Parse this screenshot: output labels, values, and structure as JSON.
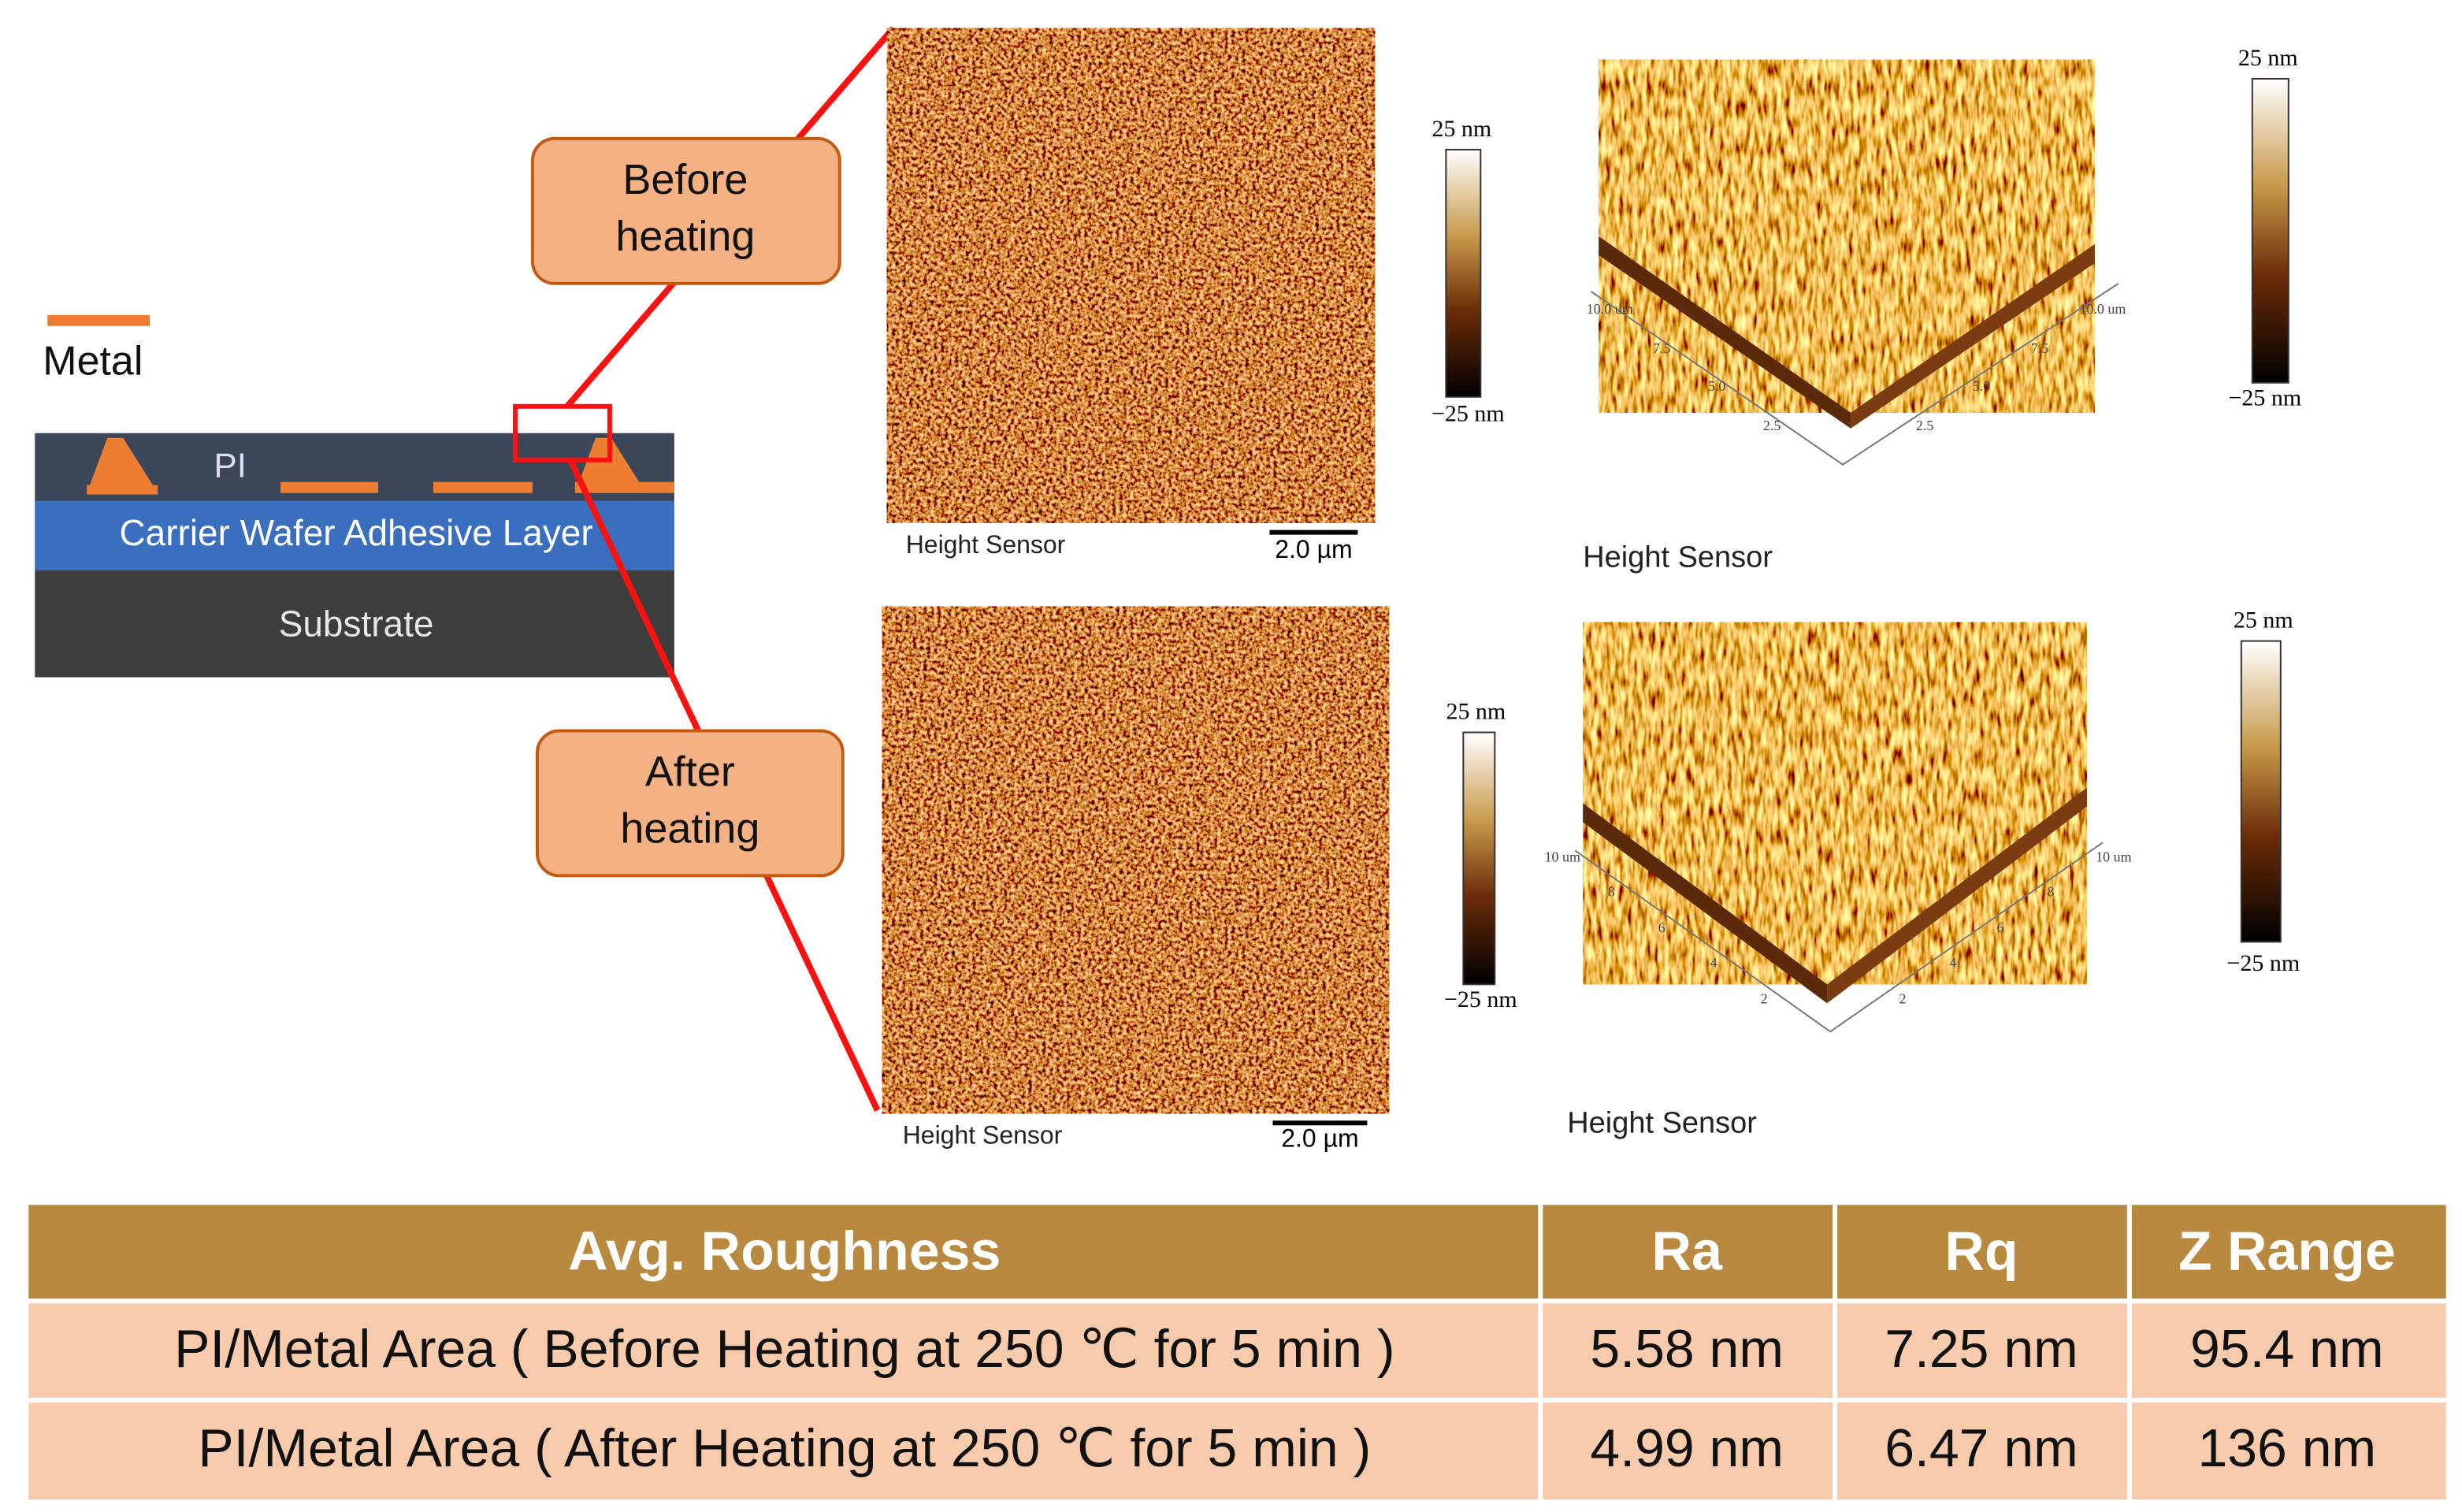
{
  "legend": {
    "metal": "Metal"
  },
  "cross_section": {
    "pi": "PI",
    "adhesive": "Carrier Wafer Adhesive Layer",
    "substrate": "Substrate"
  },
  "callouts": {
    "before": [
      "Before",
      "heating"
    ],
    "after": [
      "After",
      "heating"
    ]
  },
  "afm": [
    {
      "image_label": "Height Sensor",
      "scale_bar": "2.0 µm",
      "colorbar_2d": [
        "25 nm",
        "−25 nm"
      ],
      "surface_label": "Height Sensor",
      "surface_ticks_left": [
        "10.0 um",
        "7.5",
        "5.0",
        "2.5"
      ],
      "surface_ticks_right": [
        "10.0 um",
        "7.5",
        "5.0",
        "2.5"
      ],
      "colorbar_3d": [
        "25 nm",
        "−25 nm"
      ]
    },
    {
      "image_label": "Height Sensor",
      "scale_bar": "2.0 µm",
      "colorbar_2d": [
        "25 nm",
        "−25 nm"
      ],
      "surface_label": "Height Sensor",
      "surface_ticks_left": [
        "10 um",
        "8",
        "6",
        "4",
        "2"
      ],
      "surface_ticks_right": [
        "10 um",
        "8",
        "6",
        "4",
        "2"
      ],
      "colorbar_3d": [
        "25 nm",
        "−25 nm"
      ]
    }
  ],
  "table": {
    "header": [
      "Avg. Roughness",
      "Ra",
      "Rq",
      "Z Range"
    ],
    "rows": [
      [
        "PI/Metal Area ( Before Heating at 250 ℃ for 5 min )",
        "5.58 nm",
        "7.25 nm",
        "95.4 nm"
      ],
      [
        "PI/Metal Area ( After Heating at 250 ℃ for 5 min )",
        "4.99 nm",
        "6.47 nm",
        "136 nm"
      ]
    ]
  }
}
